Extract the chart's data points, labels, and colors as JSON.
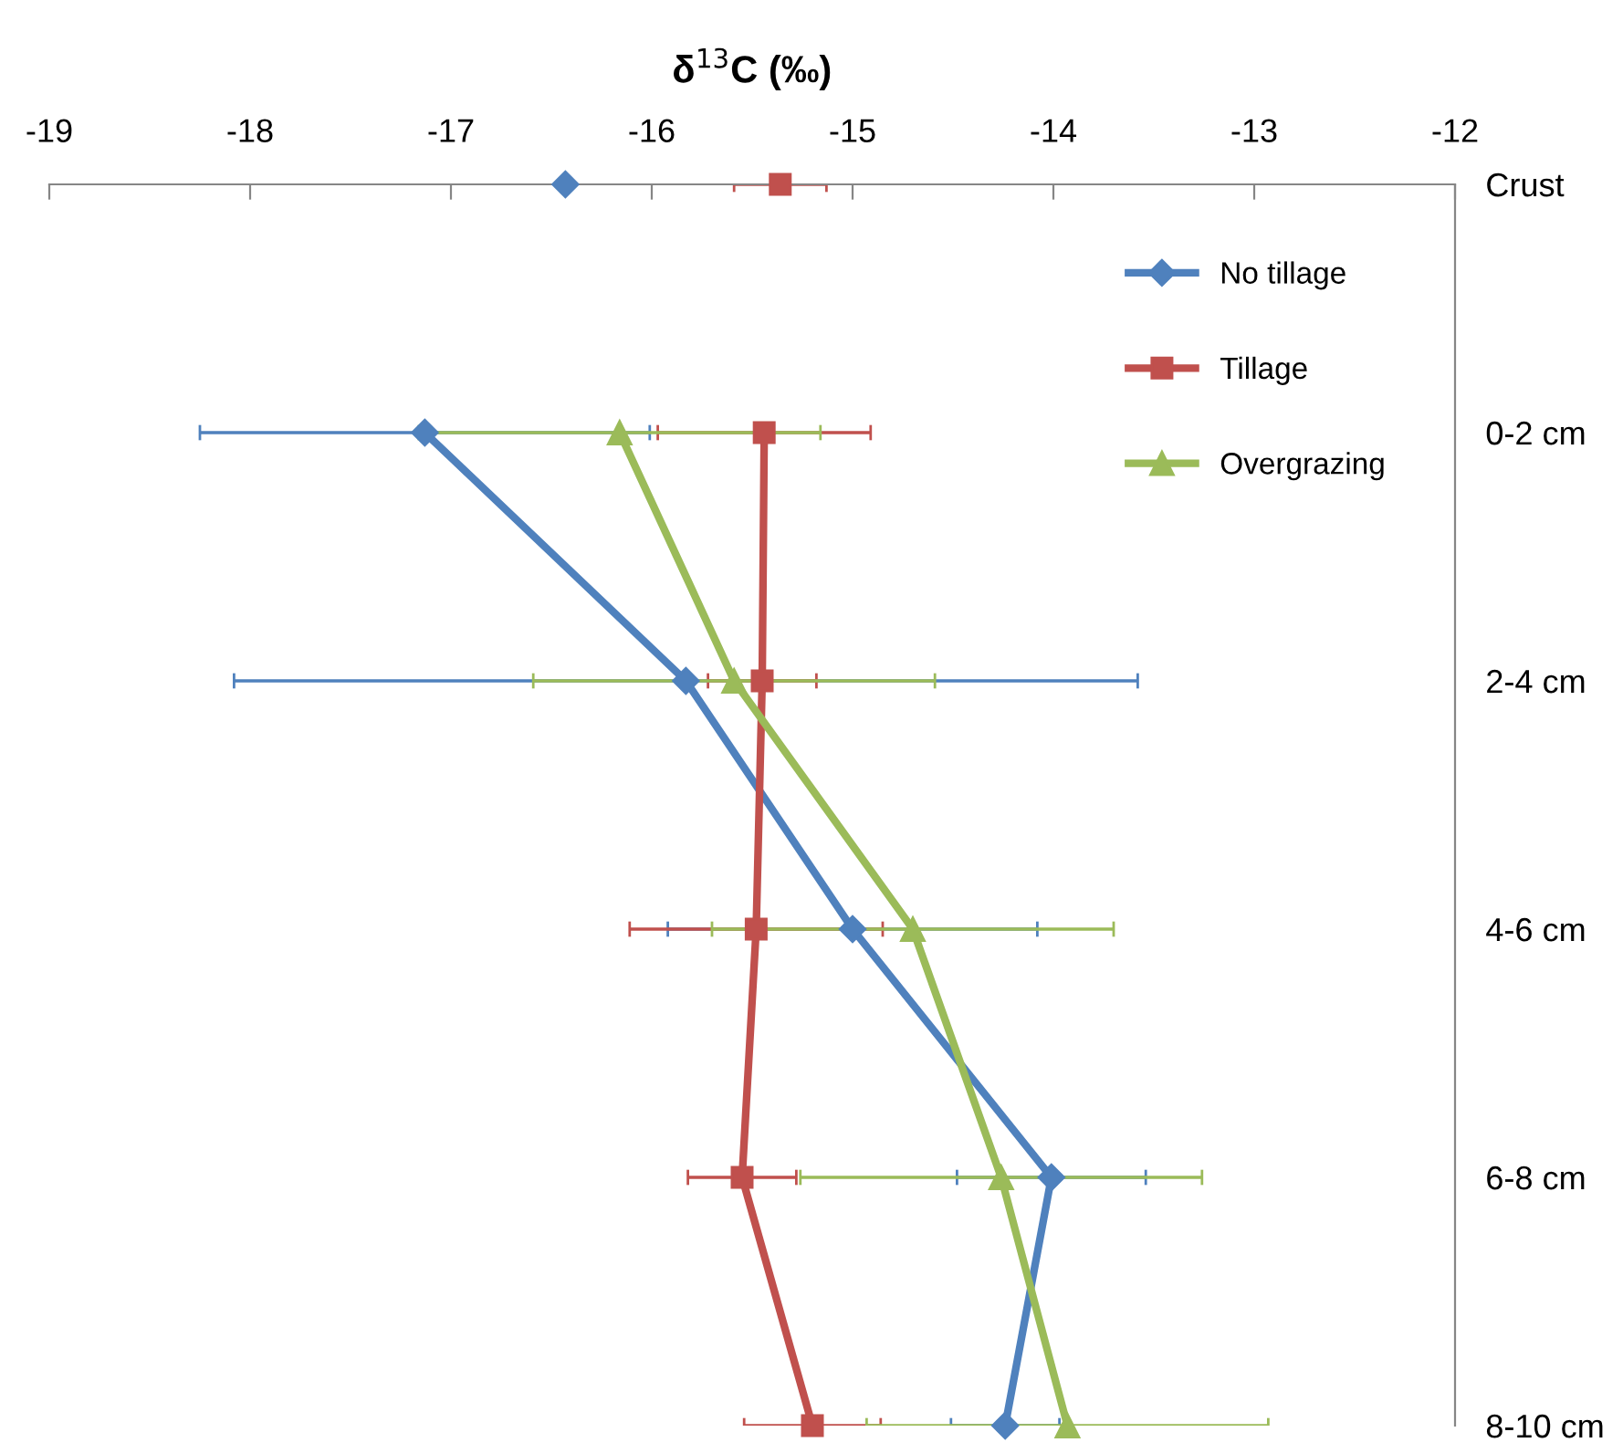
{
  "chart_data": {
    "type": "line",
    "orientation": "horizontal",
    "xlabel": "δ$^{13}$C (‰)",
    "categories": [
      "Crust",
      "0-2 cm",
      "2-4 cm",
      "4-6 cm",
      "6-8 cm",
      "8-10 cm"
    ],
    "xlim": [
      -19,
      -12
    ],
    "xticks": [
      -19,
      -18,
      -17,
      -16,
      -15,
      -14,
      -13,
      -12
    ],
    "grid": false,
    "legend": "top right",
    "line_style": "solid",
    "series": [
      {
        "name": "No tillage",
        "color": "#4f81bd",
        "marker": "diamond",
        "values": [
          null,
          -17.13,
          -15.83,
          -15.0,
          -14.01,
          -14.24
        ],
        "errors": [
          null,
          1.12,
          2.25,
          0.92,
          0.47,
          0.27
        ]
      },
      {
        "name": "Tillage",
        "color": "#c0504d",
        "marker": "square",
        "values": [
          null,
          -15.44,
          -15.45,
          -15.48,
          -15.55,
          -15.2
        ],
        "errors": [
          null,
          0.53,
          0.27,
          0.63,
          0.27,
          0.34
        ]
      },
      {
        "name": "Overgrazing",
        "color": "#9bbb59",
        "marker": "triangle",
        "values": [
          null,
          -16.16,
          -15.59,
          -14.7,
          -14.26,
          -13.93
        ],
        "errors": [
          null,
          1.0,
          1.0,
          1.0,
          1.0,
          1.0
        ]
      },
      {
        "type": "scatter",
        "color": "#4f81bd",
        "marker": "diamond",
        "values": [
          -16.43,
          null,
          null,
          null,
          null,
          null
        ]
      },
      {
        "type": "scatter",
        "color": "#c0504d",
        "marker": "square",
        "values": [
          -15.36,
          null,
          null,
          null,
          null,
          null
        ],
        "errors": [
          0.23,
          null,
          null,
          null,
          null,
          null
        ]
      }
    ]
  }
}
